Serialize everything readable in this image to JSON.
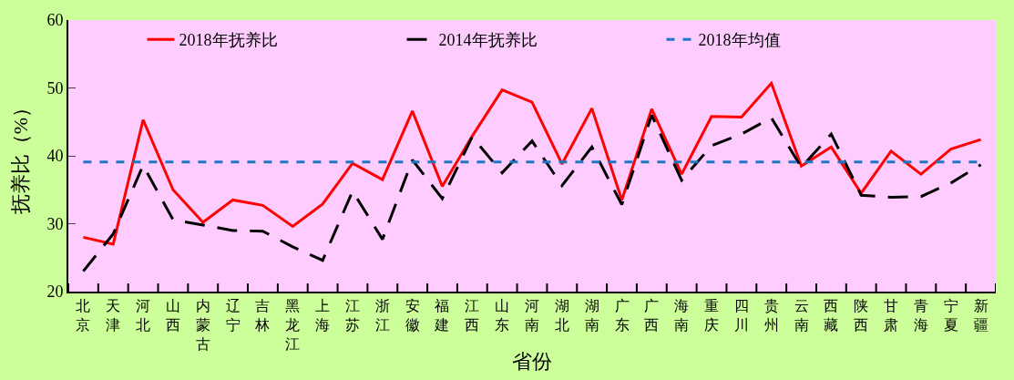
{
  "chart_data": {
    "type": "line",
    "xlabel": "省份",
    "ylabel": "抚养比（%）",
    "categories": [
      "北京",
      "天津",
      "河北",
      "山西",
      "内蒙古",
      "辽宁",
      "吉林",
      "黑龙江",
      "上海",
      "江苏",
      "浙江",
      "安徽",
      "福建",
      "江西",
      "山东",
      "河南",
      "湖北",
      "湖南",
      "广东",
      "广西",
      "海南",
      "重庆",
      "四川",
      "贵州",
      "云南",
      "西藏",
      "陕西",
      "甘肃",
      "青海",
      "宁夏",
      "新疆"
    ],
    "series": [
      {
        "name": "2018年抚养比",
        "color": "#ff0000",
        "line_style": "solid",
        "values": [
          28,
          27,
          45.3,
          35,
          30.2,
          33.5,
          32.7,
          29.6,
          32.9,
          38.9,
          36.5,
          46.6,
          35.5,
          42.9,
          49.7,
          47.9,
          38.8,
          47,
          33.5,
          46.9,
          37.3,
          45.8,
          45.7,
          50.7,
          38.5,
          41.3,
          34.5,
          40.7,
          37.3,
          41,
          42.4
        ]
      },
      {
        "name": "2014年抚养比",
        "color": "#000000",
        "line_style": "dashed",
        "values": [
          23,
          28.5,
          38.6,
          30.6,
          29.8,
          29,
          28.9,
          26.6,
          24.6,
          34.8,
          27.7,
          39.4,
          33.7,
          42.8,
          37.5,
          42.2,
          35.6,
          41.3,
          32.8,
          46,
          36.4,
          41.5,
          43.2,
          45.6,
          38.3,
          43.2,
          34.2,
          33.9,
          34,
          36,
          38.7
        ]
      }
    ],
    "ref_lines": [
      {
        "axis": "y",
        "value": 39.1,
        "label": "2018年均值",
        "color": "#1f77c4",
        "line_style": "dashed"
      }
    ],
    "ylim": [
      20,
      60
    ],
    "yticks": [
      20,
      30,
      40,
      50,
      60
    ],
    "grid": false,
    "legend": "top",
    "marker": "none"
  }
}
